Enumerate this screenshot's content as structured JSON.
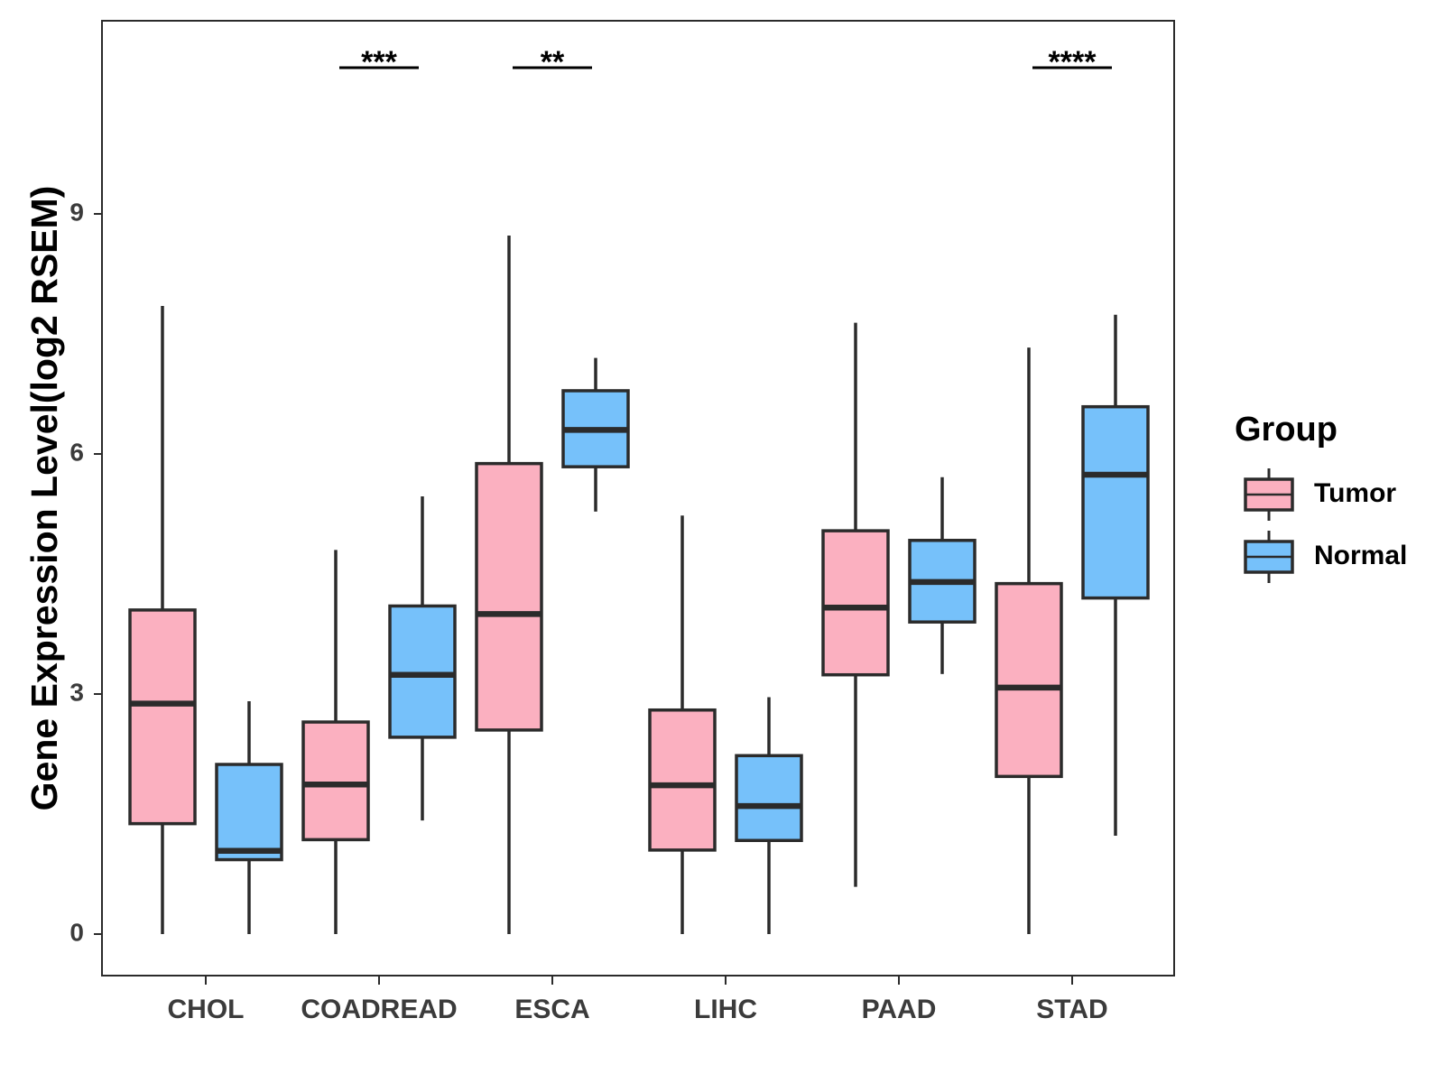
{
  "chart_data": {
    "type": "boxplot",
    "title": "",
    "xlabel": "",
    "ylabel": "Gene Expression Level(log2 RSEM)",
    "ylim": [
      -0.5,
      11.4
    ],
    "yticks": [
      0,
      3,
      6,
      9
    ],
    "ytick_labels": [
      "0",
      "3",
      "6",
      "9"
    ],
    "categories": [
      "CHOL",
      "COADREAD",
      "ESCA",
      "LIHC",
      "PAAD",
      "STAD"
    ],
    "legend": {
      "title": "Group",
      "position": "right",
      "entries": [
        {
          "name": "Tumor",
          "color": "#fbb0c0"
        },
        {
          "name": "Normal",
          "color": "#76c1fa"
        }
      ]
    },
    "series": [
      {
        "name": "Tumor",
        "color": "#fbb0c0",
        "boxes": [
          {
            "whisker_low": 0.0,
            "q1": 1.38,
            "median": 2.88,
            "q3": 4.05,
            "whisker_high": 7.85
          },
          {
            "whisker_low": 0.0,
            "q1": 1.18,
            "median": 1.87,
            "q3": 2.65,
            "whisker_high": 4.8
          },
          {
            "whisker_low": 0.0,
            "q1": 2.55,
            "median": 4.0,
            "q3": 5.88,
            "whisker_high": 8.73
          },
          {
            "whisker_low": 0.0,
            "q1": 1.05,
            "median": 1.86,
            "q3": 2.8,
            "whisker_high": 5.23
          },
          {
            "whisker_low": 0.59,
            "q1": 3.24,
            "median": 4.08,
            "q3": 5.04,
            "whisker_high": 7.64
          },
          {
            "whisker_low": 0.0,
            "q1": 1.97,
            "median": 3.08,
            "q3": 4.38,
            "whisker_high": 7.33
          }
        ]
      },
      {
        "name": "Normal",
        "color": "#76c1fa",
        "boxes": [
          {
            "whisker_low": 0.0,
            "q1": 0.93,
            "median": 1.04,
            "q3": 2.12,
            "whisker_high": 2.91
          },
          {
            "whisker_low": 1.42,
            "q1": 2.46,
            "median": 3.24,
            "q3": 4.1,
            "whisker_high": 5.47
          },
          {
            "whisker_low": 5.28,
            "q1": 5.84,
            "median": 6.3,
            "q3": 6.79,
            "whisker_high": 7.2
          },
          {
            "whisker_low": 0.0,
            "q1": 1.17,
            "median": 1.6,
            "q3": 2.23,
            "whisker_high": 2.96
          },
          {
            "whisker_low": 3.25,
            "q1": 3.9,
            "median": 4.4,
            "q3": 4.92,
            "whisker_high": 5.71
          },
          {
            "whisker_low": 1.23,
            "q1": 4.2,
            "median": 5.74,
            "q3": 6.59,
            "whisker_high": 7.74
          }
        ]
      }
    ],
    "annotations": [
      {
        "category": "COADREAD",
        "label": "***"
      },
      {
        "category": "ESCA",
        "label": "**"
      },
      {
        "category": "STAD",
        "label": "****"
      }
    ]
  }
}
